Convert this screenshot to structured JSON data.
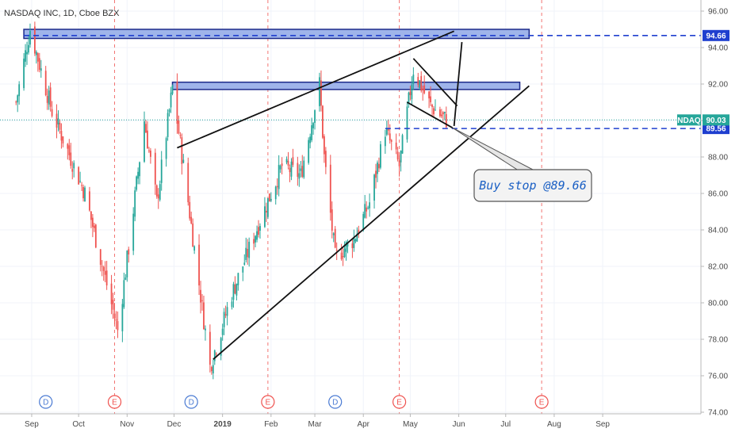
{
  "header": {
    "title": "NASDAQ INC, 1D, Cboe BZX"
  },
  "colors": {
    "up": "#26a69a",
    "down": "#ef5350",
    "level_line": "#1f3fcf",
    "zone_fill": "#9fb4ea",
    "zone_stroke": "#1c2a8a",
    "last_price": "#26a69a",
    "event_line": "#ef5350",
    "div_badge": "#4b7bd3",
    "earn_badge": "#ef5350"
  },
  "chart_data": {
    "type": "candlestick",
    "symbol": "NDAQ",
    "interval": "1D",
    "ylim": [
      74,
      96.5
    ],
    "y_ticks": [
      "96.00",
      "94.00",
      "92.00",
      "90.00",
      "88.00",
      "86.00",
      "84.00",
      "82.00",
      "80.00",
      "78.00",
      "76.00",
      "74.00"
    ],
    "x_ticks": [
      "Sep",
      "Oct",
      "Nov",
      "Dec",
      "2019",
      "Feb",
      "Mar",
      "Apr",
      "May",
      "Jun",
      "Jul",
      "Aug",
      "Sep"
    ],
    "price_path": [
      {
        "date": "2018-08-22",
        "price": 91.0
      },
      {
        "date": "2018-08-31",
        "price": 95.0
      },
      {
        "date": "2018-09-14",
        "price": 90.5
      },
      {
        "date": "2018-10-05",
        "price": 86.0
      },
      {
        "date": "2018-10-26",
        "price": 78.5
      },
      {
        "date": "2018-11-02",
        "price": 83.0
      },
      {
        "date": "2018-11-12",
        "price": 90.0
      },
      {
        "date": "2018-11-20",
        "price": 85.5
      },
      {
        "date": "2018-11-30",
        "price": 91.8
      },
      {
        "date": "2018-12-07",
        "price": 87.5
      },
      {
        "date": "2018-12-24",
        "price": 76.5
      },
      {
        "date": "2019-01-07",
        "price": 80.5
      },
      {
        "date": "2019-01-25",
        "price": 84.5
      },
      {
        "date": "2019-02-08",
        "price": 87.5
      },
      {
        "date": "2019-02-20",
        "price": 87.0
      },
      {
        "date": "2019-03-04",
        "price": 92.0
      },
      {
        "date": "2019-03-07",
        "price": 88.0
      },
      {
        "date": "2019-03-14",
        "price": 82.5
      },
      {
        "date": "2019-03-26",
        "price": 83.5
      },
      {
        "date": "2019-04-05",
        "price": 85.5
      },
      {
        "date": "2019-04-15",
        "price": 89.5
      },
      {
        "date": "2019-04-24",
        "price": 87.5
      },
      {
        "date": "2019-05-03",
        "price": 92.8
      },
      {
        "date": "2019-05-14",
        "price": 90.8
      },
      {
        "date": "2019-05-24",
        "price": 90.03
      }
    ],
    "last_price": {
      "label": "NDAQ",
      "value": "90.03"
    },
    "levels": [
      {
        "value": 94.66,
        "label": "94.66",
        "style": "dashed"
      },
      {
        "value": 89.56,
        "label": "89.56",
        "style": "dashed"
      }
    ],
    "zones": [
      {
        "from": "2018-08-27",
        "to": "2019-07-16",
        "bottom": 94.5,
        "top": 95.0
      },
      {
        "from": "2018-11-30",
        "to": "2019-07-10",
        "bottom": 91.7,
        "top": 92.1
      }
    ],
    "trendlines": [
      {
        "from": {
          "date": "2018-12-03",
          "price": 88.5
        },
        "to": {
          "date": "2019-05-29",
          "price": 94.9
        }
      },
      {
        "from": {
          "date": "2018-12-26",
          "price": 76.9
        },
        "to": {
          "date": "2019-07-16",
          "price": 91.9
        }
      },
      {
        "from": {
          "date": "2019-05-03",
          "price": 93.4
        },
        "to": {
          "date": "2019-05-31",
          "price": 90.8
        }
      },
      {
        "from": {
          "date": "2019-04-29",
          "price": 91.0
        },
        "to": {
          "date": "2019-05-28",
          "price": 89.6
        }
      },
      {
        "from": {
          "date": "2019-05-29",
          "price": 89.7
        },
        "to": {
          "date": "2019-06-03",
          "price": 94.3
        }
      }
    ],
    "callout": {
      "text": "Buy stop @89.66",
      "anchor": {
        "date": "2019-05-28",
        "price": 89.6
      }
    },
    "events": [
      {
        "type": "D",
        "label": "D",
        "date": "2018-09-10"
      },
      {
        "type": "E",
        "label": "E",
        "date": "2018-10-24"
      },
      {
        "type": "D",
        "label": "D",
        "date": "2018-12-12"
      },
      {
        "type": "E",
        "label": "E",
        "date": "2019-01-30"
      },
      {
        "type": "D",
        "label": "D",
        "date": "2019-03-14"
      },
      {
        "type": "E",
        "label": "E",
        "date": "2019-04-24"
      },
      {
        "type": "E",
        "label": "E",
        "date": "2019-07-24"
      }
    ]
  }
}
